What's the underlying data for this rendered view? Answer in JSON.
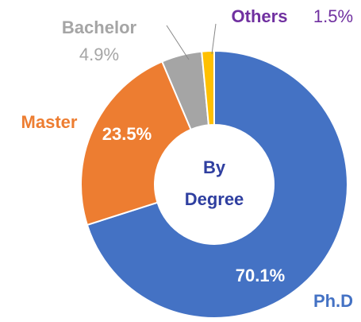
{
  "chart_data": {
    "type": "pie",
    "categories": [
      "Ph.D",
      "Master",
      "Bachelor",
      "Others"
    ],
    "values": [
      70.1,
      23.5,
      4.9,
      1.5
    ],
    "value_labels": [
      "70.1%",
      "23.5%",
      "4.9%",
      "1.5%"
    ],
    "colors": [
      "#4472c4",
      "#ed7d31",
      "#a5a5a5",
      "#ffc000"
    ],
    "label_colors": [
      "#4472c4",
      "#ed7d31",
      "#a5a5a5",
      "#7030a0"
    ],
    "center_text": [
      "By",
      "Degree"
    ],
    "center_color": "#2f3fa0"
  }
}
